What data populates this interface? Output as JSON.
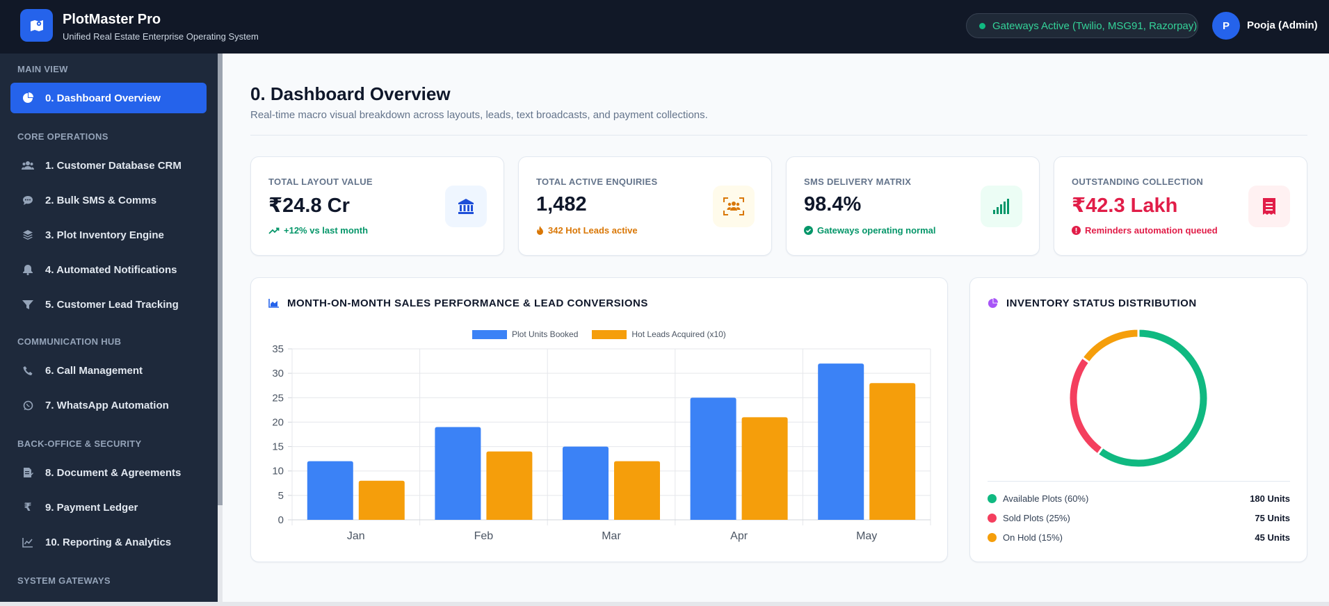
{
  "header": {
    "app_name": "PlotMaster Pro",
    "app_subtitle": "Unified Real Estate Enterprise Operating System",
    "gateway_status": "Gateways Active (Twilio, MSG91, Razorpay)",
    "user_initial": "P",
    "user_name": "Pooja (Admin)"
  },
  "sidebar": {
    "sections": {
      "main": "MAIN VIEW",
      "core": "CORE OPERATIONS",
      "comm": "COMMUNICATION HUB",
      "back": "BACK-OFFICE & SECURITY",
      "gateways": "SYSTEM GATEWAYS"
    },
    "items": [
      {
        "label": "0. Dashboard Overview",
        "icon": "pie-chart-icon"
      },
      {
        "label": "1. Customer Database CRM",
        "icon": "users-icon"
      },
      {
        "label": "2. Bulk SMS & Comms",
        "icon": "chat-icon"
      },
      {
        "label": "3. Plot Inventory Engine",
        "icon": "layers-icon"
      },
      {
        "label": "4. Automated Notifications",
        "icon": "bell-icon"
      },
      {
        "label": "5. Customer Lead Tracking",
        "icon": "filter-icon"
      },
      {
        "label": "6. Call Management",
        "icon": "phone-icon"
      },
      {
        "label": "7. WhatsApp Automation",
        "icon": "whatsapp-icon"
      },
      {
        "label": "8. Document & Agreements",
        "icon": "document-icon"
      },
      {
        "label": "9. Payment Ledger",
        "icon": "rupee-icon"
      },
      {
        "label": "10. Reporting & Analytics",
        "icon": "line-chart-icon"
      }
    ]
  },
  "main": {
    "title": "0. Dashboard Overview",
    "subtitle": "Real-time macro visual breakdown across layouts, leads, text broadcasts, and payment collections."
  },
  "kpis": [
    {
      "label": "TOTAL LAYOUT VALUE",
      "value": "₹24.8 Cr",
      "note": "+12% vs last month",
      "note_color": "#059669",
      "icon": "bank-icon",
      "value_color": "#0f172a"
    },
    {
      "label": "TOTAL ACTIVE ENQUIRIES",
      "value": "1,482",
      "note": "342 Hot Leads active",
      "note_color": "#d97706",
      "icon": "users-scan-icon",
      "value_color": "#0f172a"
    },
    {
      "label": "SMS DELIVERY MATRIX",
      "value": "98.4%",
      "note": "Gateways operating normal",
      "note_color": "#059669",
      "icon": "signal-icon",
      "value_color": "#0f172a"
    },
    {
      "label": "OUTSTANDING COLLECTION",
      "value": "₹42.3 Lakh",
      "note": "Reminders automation queued",
      "note_color": "#e11d48",
      "icon": "receipt-icon",
      "value_color": "#e11d48"
    }
  ],
  "sales_card": {
    "title": "MONTH-ON-MONTH SALES PERFORMANCE & LEAD CONVERSIONS"
  },
  "inventory_card": {
    "title": "INVENTORY STATUS DISTRIBUTION",
    "rows": [
      {
        "label": "Available Plots (60%)",
        "value": "180 Units",
        "color": "#10b981"
      },
      {
        "label": "Sold Plots (25%)",
        "value": "75 Units",
        "color": "#f43f5e"
      },
      {
        "label": "On Hold (15%)",
        "value": "45 Units",
        "color": "#f59e0b"
      }
    ]
  },
  "chart_data": [
    {
      "type": "bar",
      "categories": [
        "Jan",
        "Feb",
        "Mar",
        "Apr",
        "May"
      ],
      "series": [
        {
          "name": "Plot Units Booked",
          "values": [
            12,
            19,
            15,
            25,
            32
          ],
          "color": "#3b82f6"
        },
        {
          "name": "Hot Leads Acquired (x10)",
          "values": [
            8,
            14,
            12,
            21,
            28
          ],
          "color": "#f59e0b"
        }
      ],
      "ylim": [
        0,
        35
      ],
      "yticks": [
        0,
        5,
        10,
        15,
        20,
        25,
        30,
        35
      ],
      "legend": "top-center",
      "grid": true
    },
    {
      "type": "pie",
      "donut": true,
      "labels": [
        "Available Plots",
        "Sold Plots",
        "On Hold"
      ],
      "values": [
        60,
        25,
        15
      ],
      "colors": [
        "#10b981",
        "#f43f5e",
        "#f59e0b"
      ]
    }
  ]
}
